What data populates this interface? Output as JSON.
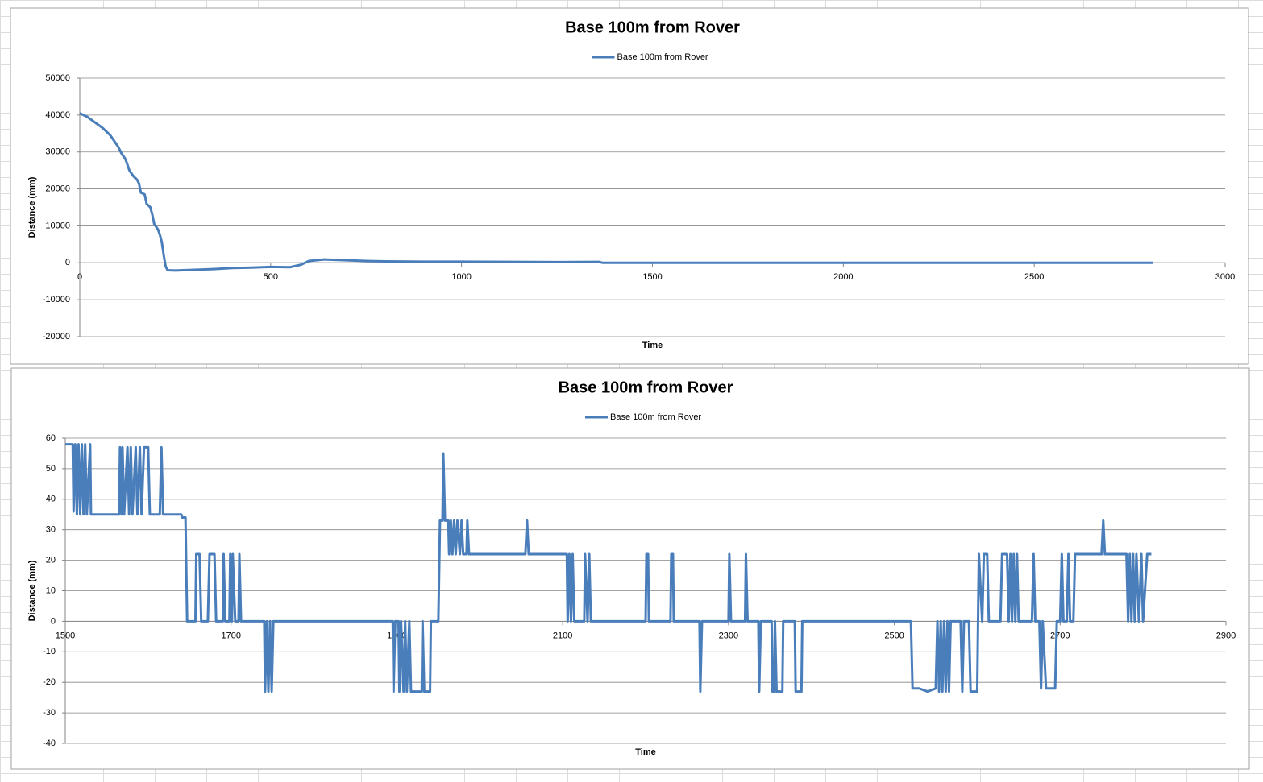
{
  "chart_data": [
    {
      "type": "line",
      "title": "Base 100m from Rover",
      "x_label": "Time",
      "y_label": "Distance (mm)",
      "x": [
        0,
        20,
        40,
        60,
        80,
        100,
        110,
        120,
        130,
        140,
        150,
        155,
        160,
        170,
        175,
        185,
        190,
        195,
        205,
        210,
        215,
        220,
        225,
        230,
        250,
        300,
        350,
        400,
        450,
        500,
        550,
        580,
        600,
        640,
        700,
        750,
        800,
        900,
        1000,
        1250,
        1360,
        1370,
        1500,
        2000,
        2500,
        2810
      ],
      "series": [
        {
          "name": "Base 100m from Rover",
          "color": "#4a7ebb",
          "values": [
            40500,
            39500,
            38000,
            36500,
            34500,
            31500,
            29500,
            28000,
            25000,
            23500,
            22500,
            21500,
            19000,
            18500,
            16000,
            15000,
            13000,
            10500,
            9000,
            7500,
            5500,
            2000,
            -1000,
            -2000,
            -2100,
            -1900,
            -1700,
            -1400,
            -1300,
            -1100,
            -1200,
            -500,
            500,
            900,
            700,
            500,
            400,
            300,
            300,
            200,
            250,
            0,
            0,
            0,
            0,
            0
          ]
        }
      ],
      "xlim": [
        0,
        3000
      ],
      "ylim": [
        -20000,
        50000
      ],
      "xticks": [
        0,
        500,
        1000,
        1500,
        2000,
        2500,
        3000
      ],
      "yticks": [
        -20000,
        -10000,
        0,
        10000,
        20000,
        30000,
        40000,
        50000
      ],
      "grid": true
    },
    {
      "type": "line",
      "title": "Base 100m from Rover",
      "x_label": "Time",
      "y_label": "Distance (mm)",
      "x": [
        1500,
        1509,
        1510,
        1512,
        1514,
        1516,
        1518,
        1520,
        1522,
        1524,
        1526,
        1530,
        1531,
        1565,
        1566,
        1568,
        1569,
        1571,
        1575,
        1577,
        1579,
        1581,
        1585,
        1587,
        1590,
        1592,
        1595,
        1600,
        1602,
        1614,
        1616,
        1618,
        1640,
        1641,
        1645,
        1647,
        1657,
        1658,
        1662,
        1664,
        1672,
        1674,
        1680,
        1682,
        1690,
        1691,
        1693,
        1698,
        1699,
        1701,
        1702,
        1705,
        1709,
        1710,
        1712,
        1740,
        1741,
        1743,
        1745,
        1747,
        1749,
        1751,
        1895,
        1896,
        1898,
        1902,
        1903,
        1905,
        1908,
        1910,
        1912,
        1915,
        1917,
        1930,
        1931,
        1933,
        1940,
        1941,
        1950,
        1952,
        1955,
        1956,
        1958,
        1962,
        1963,
        1965,
        1967,
        1969,
        1971,
        1973,
        1976,
        1978,
        1980,
        1984,
        1985,
        1987,
        2055,
        2057,
        2059,
        2105,
        2106,
        2108,
        2110,
        2112,
        2114,
        2126,
        2127,
        2130,
        2132,
        2134,
        2200,
        2201,
        2203,
        2204,
        2230,
        2231,
        2233,
        2234,
        2265,
        2266,
        2268,
        2300,
        2301,
        2303,
        2320,
        2321,
        2323,
        2336,
        2337,
        2339,
        2352,
        2353,
        2355,
        2356,
        2358,
        2365,
        2366,
        2380,
        2381,
        2388,
        2389,
        2520,
        2522,
        2530,
        2540,
        2550,
        2552,
        2554,
        2556,
        2558,
        2560,
        2562,
        2564,
        2566,
        2568,
        2580,
        2582,
        2584,
        2590,
        2592,
        2600,
        2601,
        2602,
        2606,
        2608,
        2612,
        2614,
        2628,
        2630,
        2636,
        2638,
        2640,
        2642,
        2644,
        2646,
        2648,
        2650,
        2666,
        2668,
        2670,
        2675,
        2677,
        2679,
        2683,
        2694,
        2696,
        2700,
        2702,
        2704,
        2708,
        2710,
        2712,
        2716,
        2718,
        2750,
        2752,
        2754,
        2780,
        2782,
        2784,
        2786,
        2788,
        2790,
        2792,
        2795,
        2798,
        2800,
        2805,
        2810
      ],
      "series": [
        {
          "name": "Base 100m from Rover",
          "color": "#4a7ebb",
          "values": [
            58,
            58,
            36,
            58,
            35,
            58,
            35,
            58,
            35,
            58,
            35,
            58,
            35,
            35,
            57,
            35,
            57,
            35,
            57,
            35,
            57,
            35,
            57,
            35,
            57,
            35,
            57,
            57,
            35,
            35,
            57,
            35,
            35,
            34,
            34,
            0,
            0,
            22,
            22,
            0,
            0,
            22,
            22,
            0,
            0,
            22,
            0,
            0,
            22,
            0,
            22,
            0,
            0,
            22,
            0,
            0,
            -23,
            0,
            -23,
            0,
            -23,
            0,
            0,
            -23,
            0,
            0,
            -23,
            0,
            -23,
            0,
            -23,
            0,
            -23,
            -23,
            0,
            -23,
            -23,
            0,
            0,
            33,
            33,
            55,
            33,
            33,
            22,
            33,
            22,
            33,
            22,
            33,
            22,
            33,
            22,
            22,
            33,
            22,
            22,
            33,
            22,
            22,
            0,
            22,
            0,
            22,
            0,
            0,
            22,
            0,
            22,
            0,
            0,
            22,
            22,
            0,
            0,
            22,
            22,
            0,
            0,
            -23,
            0,
            0,
            22,
            0,
            0,
            22,
            0,
            0,
            -23,
            0,
            0,
            -23,
            -23,
            0,
            -23,
            -23,
            0,
            0,
            -23,
            -23,
            0,
            0,
            -22,
            -22,
            -23,
            -22,
            0,
            -23,
            0,
            -23,
            0,
            -23,
            0,
            -23,
            0,
            0,
            -23,
            0,
            0,
            -23,
            -23,
            0,
            22,
            0,
            22,
            22,
            0,
            0,
            22,
            22,
            0,
            22,
            0,
            22,
            0,
            22,
            0,
            0,
            22,
            0,
            0,
            -22,
            0,
            -22,
            -22,
            0,
            0,
            22,
            0,
            0,
            22,
            0,
            0,
            22,
            22,
            33,
            22,
            22,
            0,
            22,
            0,
            22,
            0,
            22,
            0,
            22,
            0,
            22,
            22
          ]
        }
      ],
      "xlim": [
        1500,
        2900
      ],
      "ylim": [
        -40,
        60
      ],
      "xticks": [
        1500,
        1700,
        1900,
        2100,
        2300,
        2500,
        2700,
        2900
      ],
      "yticks": [
        -40,
        -30,
        -20,
        -10,
        0,
        10,
        20,
        30,
        40,
        50,
        60
      ],
      "grid": true
    }
  ]
}
